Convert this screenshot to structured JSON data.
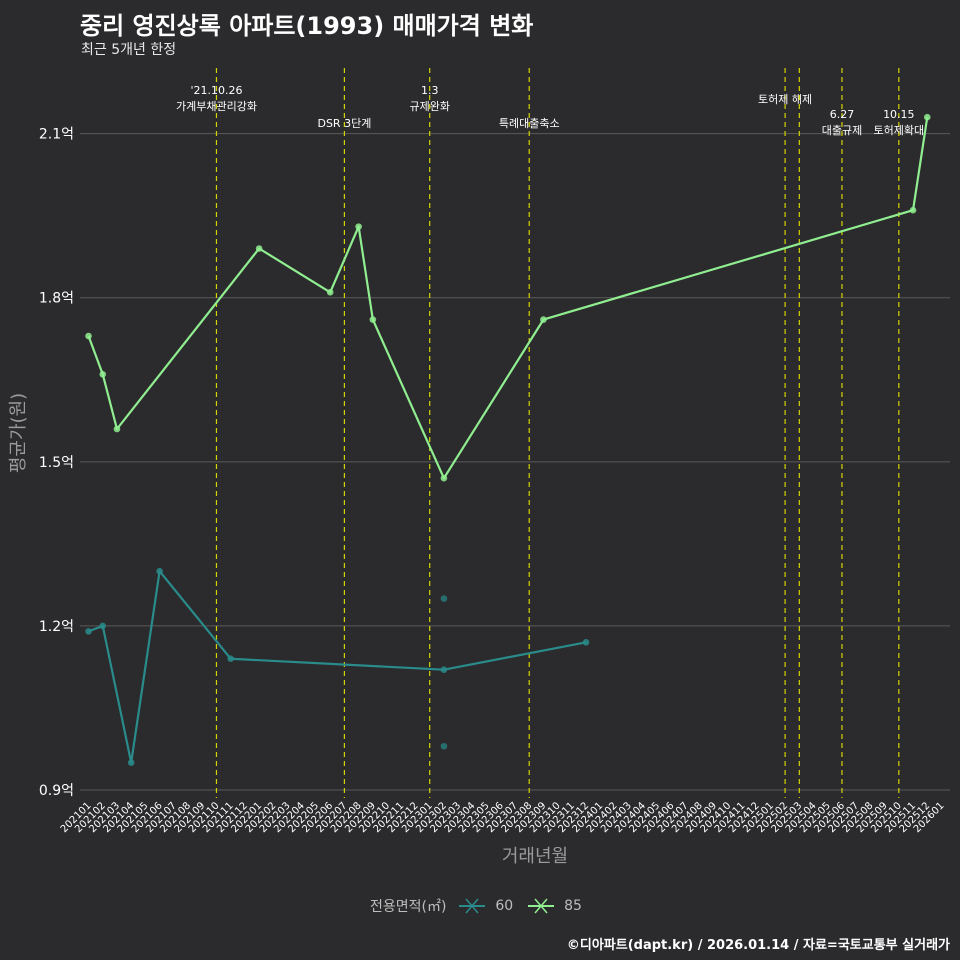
{
  "title": "중리 영진상록 아파트(1993) 매매가격 변화",
  "subtitle": "최근 5개년 한정",
  "caption": "©디아파트(dapt.kr) / 2026.01.14 / 자료=국토교통부 실거래가",
  "colors": {
    "background": "#2b2b2d",
    "s60": "#2a8b8b",
    "s85": "#90ee90",
    "vline": "#d4d400",
    "grid": "#5a5a5a"
  },
  "chart_data": {
    "type": "line",
    "xlabel": "거래년월",
    "ylabel": "평균가(원)",
    "categories": [
      "202101",
      "202102",
      "202103",
      "202104",
      "202105",
      "202106",
      "202107",
      "202108",
      "202109",
      "202110",
      "202111",
      "202112",
      "202201",
      "202202",
      "202203",
      "202204",
      "202205",
      "202206",
      "202207",
      "202208",
      "202209",
      "202210",
      "202211",
      "202212",
      "202301",
      "202302",
      "202303",
      "202304",
      "202305",
      "202306",
      "202307",
      "202308",
      "202309",
      "202310",
      "202311",
      "202312",
      "202401",
      "202402",
      "202403",
      "202404",
      "202405",
      "202406",
      "202407",
      "202408",
      "202409",
      "202410",
      "202411",
      "202412",
      "202501",
      "202502",
      "202503",
      "202504",
      "202505",
      "202506",
      "202507",
      "202508",
      "202509",
      "202510",
      "202511",
      "202512",
      "202601"
    ],
    "yticks": [
      0.9,
      1.2,
      1.5,
      1.8,
      2.1
    ],
    "yticklabels": [
      "0.9억",
      "1.2억",
      "1.5억",
      "1.8억",
      "2.1억"
    ],
    "ylim": [
      0.9,
      2.22
    ],
    "series": [
      {
        "name": "60",
        "line": [
          [
            "202101",
            1.19
          ],
          [
            "202102",
            1.2
          ],
          [
            "202104",
            0.95
          ],
          [
            "202106",
            1.3
          ],
          [
            "202111",
            1.14
          ],
          [
            "202302",
            1.12
          ],
          [
            "202312",
            1.17
          ]
        ],
        "extra_points": [
          [
            "202302",
            1.25
          ],
          [
            "202302",
            0.98
          ]
        ]
      },
      {
        "name": "85",
        "line": [
          [
            "202101",
            1.73
          ],
          [
            "202102",
            1.66
          ],
          [
            "202103",
            1.56
          ],
          [
            "202201",
            1.89
          ],
          [
            "202206",
            1.81
          ],
          [
            "202208",
            1.93
          ],
          [
            "202209",
            1.76
          ],
          [
            "202302",
            1.47
          ],
          [
            "202309",
            1.76
          ],
          [
            "202511",
            1.96
          ],
          [
            "202512",
            2.13
          ]
        ],
        "extra_points": []
      }
    ],
    "annotations": [
      {
        "x": "202110",
        "lines": [
          "'21.10.26",
          "가계부채관리강화"
        ],
        "level": "top"
      },
      {
        "x": "202207",
        "lines": [
          "DSR 3단계"
        ],
        "level": "low"
      },
      {
        "x": "202301",
        "lines": [
          "1.3",
          "규제완화"
        ],
        "level": "top"
      },
      {
        "x": "202308",
        "lines": [
          "특례대출축소"
        ],
        "level": "low"
      },
      {
        "x": "202502",
        "lines": [
          "토허제 해제"
        ],
        "level": "mid"
      },
      {
        "x": "202503",
        "lines": [],
        "level": "mid"
      },
      {
        "x": "202506",
        "lines": [
          "6.27",
          "대출규제"
        ],
        "level": "low2"
      },
      {
        "x": "202510",
        "lines": [
          "10.15",
          "토허제확대"
        ],
        "level": "low2"
      }
    ],
    "legend": {
      "title": "전용면적(㎡)",
      "entries": [
        "60",
        "85"
      ]
    }
  }
}
